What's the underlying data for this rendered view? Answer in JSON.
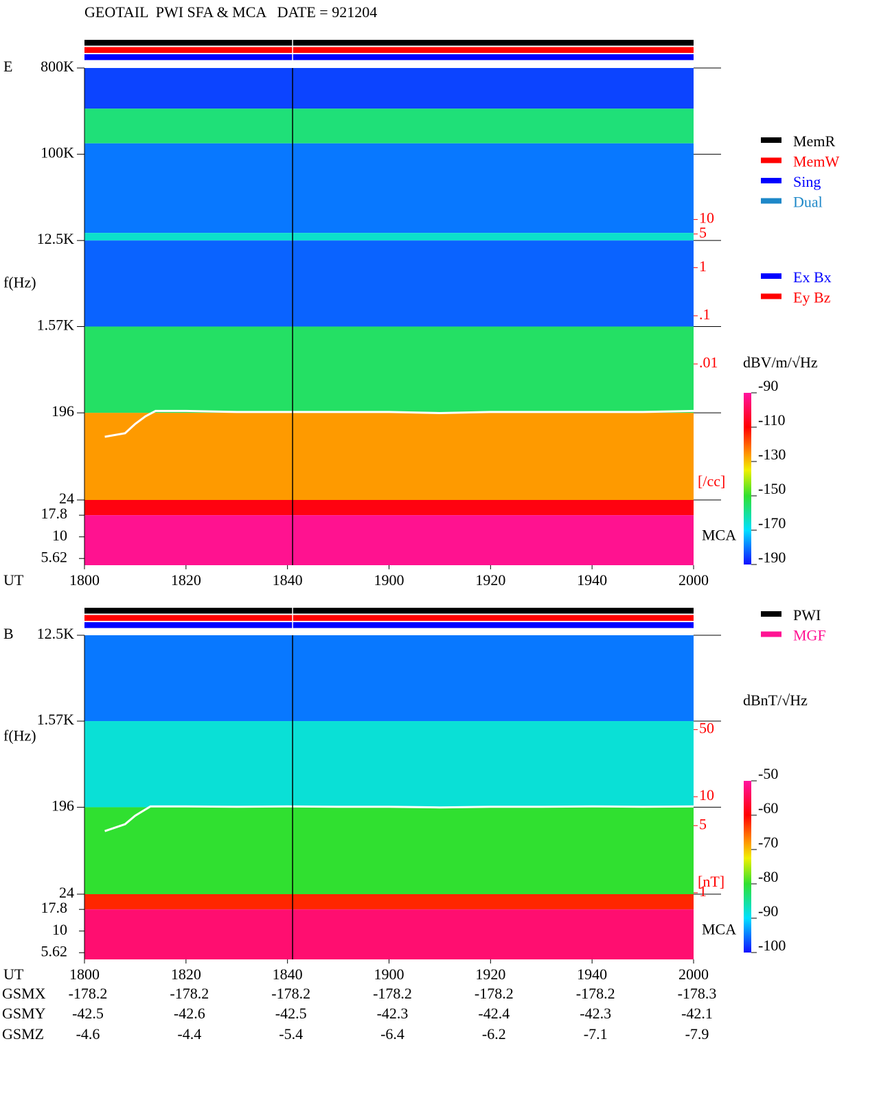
{
  "title": "GEOTAIL  PWI SFA & MCA   DATE = 921204",
  "chart_data": [
    {
      "type": "spectrogram",
      "panel_label": "E",
      "y_label": "f(Hz)",
      "x_label": "UT",
      "log_y": true,
      "xlim": [
        0,
        120
      ],
      "xticks": [
        {
          "value": 0,
          "label": "1800"
        },
        {
          "value": 20,
          "label": "1820"
        },
        {
          "value": 40,
          "label": "1840"
        },
        {
          "value": 60,
          "label": "1900"
        },
        {
          "value": 80,
          "label": "1920"
        },
        {
          "value": 100,
          "label": "1940"
        },
        {
          "value": 120,
          "label": "2000"
        }
      ],
      "ylim": [
        24,
        800000
      ],
      "yticks": [
        {
          "value": 800000,
          "label": "800K"
        },
        {
          "value": 100000,
          "label": "100K"
        },
        {
          "value": 12500,
          "label": "12.5K"
        },
        {
          "value": 1570,
          "label": "1.57K"
        },
        196,
        24
      ],
      "mca_label": "MCA",
      "mca_ylim": [
        4.7,
        26.7
      ],
      "mca_yticks": [
        17.8,
        10,
        5.62
      ],
      "bands": [
        {
          "range": [
            300000,
            800000
          ],
          "value": -185
        },
        {
          "range": [
            130000,
            300000
          ],
          "value": -157
        },
        {
          "range": [
            15000,
            130000
          ],
          "value": -180
        },
        {
          "range": [
            12500,
            15000
          ],
          "value": -165
        },
        {
          "range": [
            1570,
            12500
          ],
          "value": -182
        },
        {
          "range": [
            196,
            1570
          ],
          "value": -155
        },
        {
          "range": [
            24,
            196
          ],
          "value": -126
        }
      ],
      "mca_bands": [
        {
          "range": [
            17.8,
            26.7
          ],
          "value": -108
        },
        {
          "range": [
            4.7,
            17.8
          ],
          "value": -92
        }
      ],
      "colorbar": {
        "label": "dBV/m/√Hz",
        "lim": [
          -190,
          -90
        ],
        "ticks": [
          -90,
          -110,
          -130,
          -150,
          -170,
          -190
        ]
      },
      "y2": {
        "label": "[/cc]",
        "color": "#ff0000",
        "lim": [
          1.5e-05,
          14000
        ],
        "ticks": [
          10,
          5,
          1,
          {
            "value": 0.1,
            "label": ".1"
          },
          {
            "value": 0.01,
            "label": ".01"
          }
        ]
      },
      "trace": {
        "color": "#ffffff",
        "x": [
          4,
          8,
          10,
          12,
          14,
          20,
          30,
          40,
          50,
          60,
          70,
          80,
          90,
          100,
          110,
          120
        ],
        "values": [
          110,
          120,
          150,
          180,
          205,
          205,
          200,
          200,
          200,
          200,
          195,
          200,
          200,
          200,
          200,
          205
        ]
      },
      "marker_x": 41,
      "status_colors": [
        "#000000",
        "#ff0000",
        "#0000ff"
      ],
      "legend_groups": [
        [
          {
            "name": "MemR",
            "color": "#000000"
          },
          {
            "name": "MemW",
            "color": "#ff0000"
          },
          {
            "name": "Sing",
            "color": "#0000ff"
          },
          {
            "name": "Dual",
            "color": "#1e88c8"
          }
        ],
        [
          {
            "name": "Ex Bx",
            "color": "#0000ff"
          },
          {
            "name": "Ey Bz",
            "color": "#ff0000"
          }
        ]
      ]
    },
    {
      "type": "spectrogram",
      "panel_label": "B",
      "y_label": "f(Hz)",
      "x_label": "UT",
      "log_y": true,
      "xlim": [
        0,
        120
      ],
      "xticks": [
        {
          "value": 0,
          "label": "1800"
        },
        {
          "value": 20,
          "label": "1820"
        },
        {
          "value": 40,
          "label": "1840"
        },
        {
          "value": 60,
          "label": "1900"
        },
        {
          "value": 80,
          "label": "1920"
        },
        {
          "value": 100,
          "label": "1940"
        },
        {
          "value": 120,
          "label": "2000"
        }
      ],
      "ylim": [
        24,
        12500
      ],
      "yticks": [
        {
          "value": 12500,
          "label": "12.5K"
        },
        {
          "value": 1570,
          "label": "1.57K"
        },
        196,
        24
      ],
      "mca_label": "MCA",
      "mca_ylim": [
        4.7,
        26.7
      ],
      "mca_yticks": [
        17.8,
        10,
        5.62
      ],
      "bands": [
        {
          "range": [
            1570,
            12500
          ],
          "value": -95
        },
        {
          "range": [
            196,
            1570
          ],
          "value": -88
        },
        {
          "range": [
            24,
            196
          ],
          "value": -80
        }
      ],
      "mca_bands": [
        {
          "range": [
            17.8,
            26.7
          ],
          "value": -62
        },
        {
          "range": [
            4.7,
            17.8
          ],
          "value": -53
        }
      ],
      "colorbar": {
        "label": "dBnT/√Hz",
        "lim": [
          -100,
          -50
        ],
        "ticks": [
          -50,
          -60,
          -70,
          -80,
          -90,
          -100
        ]
      },
      "y2": {
        "label": "[nT]",
        "color": "#ff0000",
        "lim": [
          0.967,
          480
        ],
        "ticks": [
          50,
          10,
          5,
          1
        ]
      },
      "trace": {
        "color": "#ffffff",
        "x": [
          4,
          8,
          10,
          13,
          20,
          30,
          40,
          50,
          60,
          70,
          80,
          90,
          100,
          110,
          120
        ],
        "values": [
          110,
          130,
          160,
          200,
          200,
          198,
          200,
          198,
          198,
          195,
          198,
          198,
          200,
          198,
          200
        ]
      },
      "marker_x": 41,
      "status_colors": [
        "#000000",
        "#ff0000",
        "#0000ff"
      ],
      "legend_groups": [
        [
          {
            "name": "PWI",
            "color": "#000000"
          },
          {
            "name": "MGF",
            "color": "#ff1493"
          }
        ]
      ]
    }
  ],
  "orbit": {
    "row_labels": [
      "GSMX",
      "GSMY",
      "GSMZ"
    ],
    "rows": [
      [
        -178.2,
        -178.2,
        -178.2,
        -178.2,
        -178.2,
        -178.2,
        -178.3
      ],
      [
        -42.5,
        -42.6,
        -42.5,
        -42.3,
        -42.4,
        -42.3,
        -42.1
      ],
      [
        -4.6,
        -4.4,
        -5.4,
        -6.4,
        -6.2,
        -7.1,
        -7.9
      ]
    ]
  }
}
